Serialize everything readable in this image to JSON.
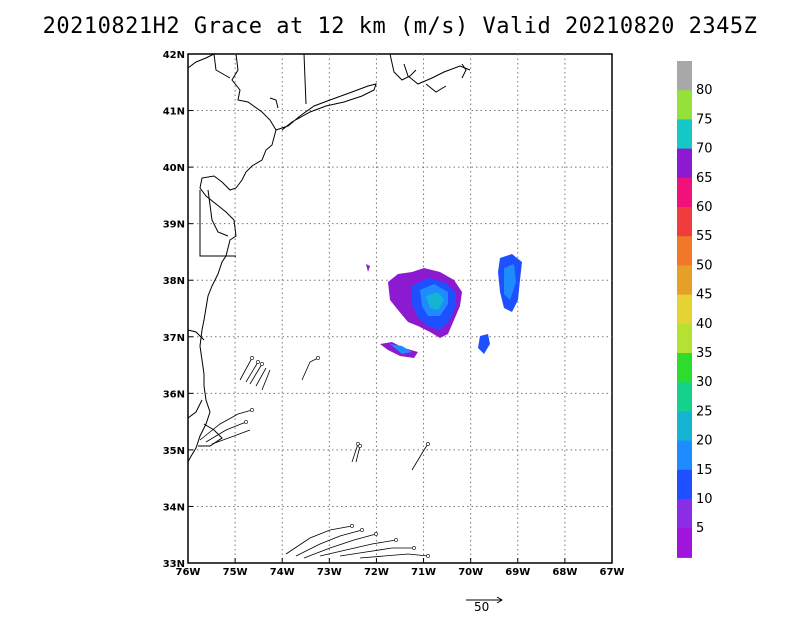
{
  "title": "20210821H2 Grace at 12 km (m/s) Valid 20210820 2345Z",
  "map": {
    "lon_min": -76,
    "lon_max": -67,
    "lat_min": 33,
    "lat_max": 42,
    "lon_labels": [
      "76W",
      "75W",
      "74W",
      "73W",
      "72W",
      "71W",
      "70W",
      "69W",
      "68W",
      "67W"
    ],
    "lat_labels": [
      "33N",
      "34N",
      "35N",
      "36N",
      "37N",
      "38N",
      "39N",
      "40N",
      "41N",
      "42N"
    ],
    "gridlines": "dotted"
  },
  "colorbar": {
    "labels": [
      "80",
      "75",
      "70",
      "65",
      "60",
      "55",
      "50",
      "45",
      "40",
      "35",
      "30",
      "25",
      "20",
      "15",
      "10",
      "5"
    ],
    "colors_top_to_bottom": [
      "#a8a8a8",
      "#96e03c",
      "#14c8c8",
      "#8c1ad0",
      "#f0127a",
      "#f03c3c",
      "#f07828",
      "#e6a028",
      "#e6d232",
      "#b4e132",
      "#2ddc2d",
      "#14d28c",
      "#14b4d2",
      "#1e8cff",
      "#1e50ff",
      "#8c2de6",
      "#a014dc"
    ]
  },
  "reference_vector": {
    "label": "50"
  },
  "colors": {
    "land_lines": "#000000",
    "grid": "#777777"
  }
}
